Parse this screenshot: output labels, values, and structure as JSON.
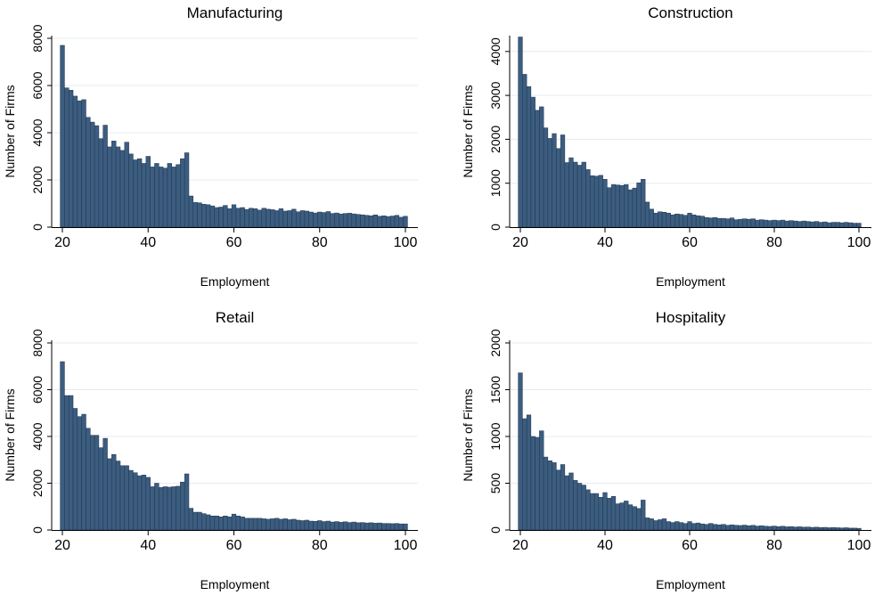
{
  "colors": {
    "bar": "#3c5d7f",
    "bar_edge": "#1e3550",
    "grid": "#e6ecef",
    "axis": "#000000"
  },
  "chart_data": [
    {
      "type": "bar",
      "title": "Manufacturing",
      "xlabel": "Employment",
      "ylabel": "Number of Firms",
      "xlim": [
        20,
        100
      ],
      "ylim": [
        0,
        8000
      ],
      "xticks": [
        20,
        40,
        60,
        80,
        100
      ],
      "yticks": [
        0,
        2000,
        4000,
        6000,
        8000
      ],
      "grid": true,
      "series": [
        {
          "x": [
            20,
            21,
            22,
            23,
            24,
            25,
            26,
            27,
            28,
            29,
            30,
            31,
            32,
            33,
            34,
            35,
            36,
            37,
            38,
            39,
            40,
            41,
            42,
            43,
            44,
            45,
            46,
            47,
            48,
            49,
            50,
            51,
            52,
            53,
            54,
            55,
            56,
            57,
            58,
            59,
            60,
            61,
            62,
            63,
            64,
            65,
            66,
            67,
            68,
            69,
            70,
            71,
            72,
            73,
            74,
            75,
            76,
            77,
            78,
            79,
            80,
            81,
            82,
            83,
            84,
            85,
            86,
            87,
            88,
            89,
            90,
            91,
            92,
            93,
            94,
            95,
            96,
            97,
            98,
            99,
            100
          ],
          "values": [
            7700,
            5900,
            5800,
            5550,
            5350,
            5400,
            4650,
            4450,
            4300,
            3750,
            4320,
            3400,
            3650,
            3400,
            3250,
            3600,
            3100,
            2850,
            2900,
            2700,
            3000,
            2550,
            2700,
            2550,
            2500,
            2700,
            2550,
            2650,
            2900,
            3150,
            1320,
            1050,
            1030,
            970,
            950,
            900,
            830,
            850,
            920,
            780,
            950,
            800,
            830,
            750,
            800,
            780,
            720,
            800,
            760,
            740,
            700,
            780,
            680,
            700,
            760,
            650,
            700,
            680,
            640,
            600,
            640,
            620,
            660,
            580,
            600,
            560,
            580,
            590,
            560,
            540,
            520,
            500,
            480,
            520,
            460,
            480,
            450,
            470,
            500,
            420,
            460
          ]
        }
      ]
    },
    {
      "type": "bar",
      "title": "Construction",
      "xlabel": "Employment",
      "ylabel": "Number of Firms",
      "xlim": [
        20,
        100
      ],
      "ylim": [
        0,
        4300
      ],
      "xticks": [
        20,
        40,
        60,
        80,
        100
      ],
      "yticks": [
        0,
        1000,
        2000,
        3000,
        4000
      ],
      "grid": true,
      "series": [
        {
          "x": [
            20,
            21,
            22,
            23,
            24,
            25,
            26,
            27,
            28,
            29,
            30,
            31,
            32,
            33,
            34,
            35,
            36,
            37,
            38,
            39,
            40,
            41,
            42,
            43,
            44,
            45,
            46,
            47,
            48,
            49,
            50,
            51,
            52,
            53,
            54,
            55,
            56,
            57,
            58,
            59,
            60,
            61,
            62,
            63,
            64,
            65,
            66,
            67,
            68,
            69,
            70,
            71,
            72,
            73,
            74,
            75,
            76,
            77,
            78,
            79,
            80,
            81,
            82,
            83,
            84,
            85,
            86,
            87,
            88,
            89,
            90,
            91,
            92,
            93,
            94,
            95,
            96,
            97,
            98,
            99,
            100
          ],
          "values": [
            4330,
            3480,
            3200,
            2960,
            2660,
            2740,
            2260,
            2020,
            2130,
            1790,
            2100,
            1470,
            1580,
            1480,
            1410,
            1480,
            1310,
            1170,
            1160,
            1180,
            1090,
            900,
            970,
            960,
            950,
            970,
            850,
            890,
            1010,
            1090,
            570,
            410,
            320,
            350,
            340,
            320,
            280,
            300,
            290,
            270,
            320,
            280,
            260,
            250,
            220,
            210,
            220,
            200,
            200,
            190,
            210,
            170,
            180,
            190,
            180,
            190,
            160,
            170,
            160,
            150,
            160,
            150,
            160,
            140,
            150,
            140,
            130,
            140,
            130,
            120,
            130,
            110,
            120,
            100,
            110,
            110,
            100,
            110,
            100,
            90,
            90
          ]
        }
      ]
    },
    {
      "type": "bar",
      "title": "Retail",
      "xlabel": "Employment",
      "ylabel": "Number of Firms",
      "xlim": [
        20,
        100
      ],
      "ylim": [
        0,
        8000
      ],
      "xticks": [
        20,
        40,
        60,
        80,
        100
      ],
      "yticks": [
        0,
        2000,
        4000,
        6000,
        8000
      ],
      "grid": true,
      "series": [
        {
          "x": [
            20,
            21,
            22,
            23,
            24,
            25,
            26,
            27,
            28,
            29,
            30,
            31,
            32,
            33,
            34,
            35,
            36,
            37,
            38,
            39,
            40,
            41,
            42,
            43,
            44,
            45,
            46,
            47,
            48,
            49,
            50,
            51,
            52,
            53,
            54,
            55,
            56,
            57,
            58,
            59,
            60,
            61,
            62,
            63,
            64,
            65,
            66,
            67,
            68,
            69,
            70,
            71,
            72,
            73,
            74,
            75,
            76,
            77,
            78,
            79,
            80,
            81,
            82,
            83,
            84,
            85,
            86,
            87,
            88,
            89,
            90,
            91,
            92,
            93,
            94,
            95,
            96,
            97,
            98,
            99,
            100
          ],
          "values": [
            7200,
            5750,
            5750,
            5200,
            4850,
            4950,
            4350,
            4050,
            4050,
            3520,
            3920,
            3050,
            3230,
            2950,
            2750,
            2750,
            2550,
            2450,
            2320,
            2350,
            2250,
            1850,
            2000,
            1820,
            1850,
            1830,
            1850,
            1870,
            2050,
            2400,
            930,
            760,
            760,
            700,
            650,
            600,
            600,
            560,
            600,
            560,
            680,
            600,
            560,
            500,
            500,
            500,
            500,
            480,
            460,
            480,
            500,
            460,
            480,
            440,
            460,
            420,
            400,
            420,
            380,
            370,
            400,
            360,
            380,
            340,
            360,
            330,
            350,
            320,
            340,
            310,
            320,
            300,
            310,
            290,
            300,
            280,
            280,
            270,
            280,
            260,
            260
          ]
        }
      ]
    },
    {
      "type": "bar",
      "title": "Hospitality",
      "xlabel": "Employment",
      "ylabel": "Number of Firms",
      "xlim": [
        20,
        100
      ],
      "ylim": [
        0,
        2000
      ],
      "xticks": [
        20,
        40,
        60,
        80,
        100
      ],
      "yticks": [
        0,
        500,
        1000,
        1500,
        2000
      ],
      "grid": true,
      "series": [
        {
          "x": [
            20,
            21,
            22,
            23,
            24,
            25,
            26,
            27,
            28,
            29,
            30,
            31,
            32,
            33,
            34,
            35,
            36,
            37,
            38,
            39,
            40,
            41,
            42,
            43,
            44,
            45,
            46,
            47,
            48,
            49,
            50,
            51,
            52,
            53,
            54,
            55,
            56,
            57,
            58,
            59,
            60,
            61,
            62,
            63,
            64,
            65,
            66,
            67,
            68,
            69,
            70,
            71,
            72,
            73,
            74,
            75,
            76,
            77,
            78,
            79,
            80,
            81,
            82,
            83,
            84,
            85,
            86,
            87,
            88,
            89,
            90,
            91,
            92,
            93,
            94,
            95,
            96,
            97,
            98,
            99,
            100
          ],
          "values": [
            1680,
            1190,
            1230,
            1000,
            990,
            1060,
            780,
            740,
            720,
            640,
            700,
            580,
            610,
            530,
            500,
            480,
            430,
            390,
            390,
            350,
            400,
            340,
            360,
            280,
            290,
            310,
            270,
            250,
            230,
            320,
            130,
            120,
            100,
            110,
            120,
            90,
            80,
            90,
            80,
            70,
            90,
            70,
            75,
            65,
            60,
            70,
            60,
            55,
            60,
            50,
            55,
            50,
            48,
            52,
            45,
            50,
            42,
            45,
            40,
            38,
            42,
            36,
            40,
            34,
            36,
            32,
            34,
            30,
            32,
            28,
            30,
            26,
            28,
            24,
            26,
            24,
            22,
            24,
            20,
            20,
            18
          ]
        }
      ]
    }
  ]
}
